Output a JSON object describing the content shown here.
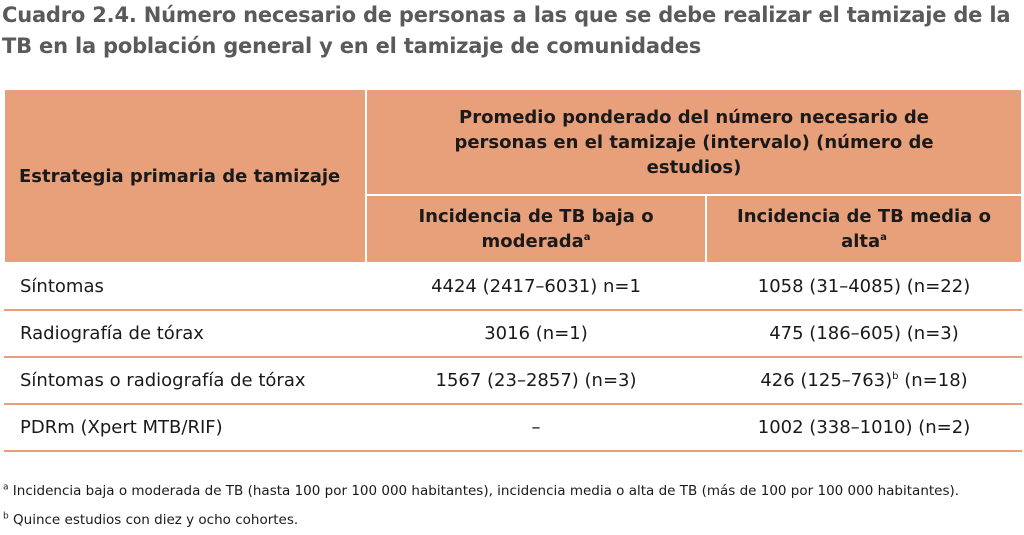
{
  "title": "Cuadro 2.4. Número necesario de personas a las que se debe realizar el tamizaje de la TB en la población general y en el tamizaje de comunidades",
  "table": {
    "col_strategy": "Estrategia primaria de tamizaje",
    "col_group": "Promedio ponderado del número necesario de personas en el tamizaje (intervalo) (número de estudios)",
    "col_low": "Incidencia de TB baja o moderada",
    "col_low_sup": "a",
    "col_high": "Incidencia de TB media o alta",
    "col_high_sup": "a",
    "rows": [
      {
        "strategy": "Síntomas",
        "low": "4424 (2417–6031) n=1",
        "high": "1058 (31–4085) (n=22)"
      },
      {
        "strategy": "Radiografía de tórax",
        "low": "3016 (n=1)",
        "high": "475 (186–605) (n=3)"
      },
      {
        "strategy": "Síntomas o radiografía de tórax",
        "low": "1567 (23–2857) (n=3)",
        "high_pre": "426 (125–763)",
        "high_sup": "b",
        "high_post": " (n=18)"
      },
      {
        "strategy": "PDRm (Xpert MTB/RIF)",
        "low": "–",
        "high": "1002 (338–1010) (n=2)"
      }
    ]
  },
  "footnotes": {
    "a_mark": "a",
    "a_text": " Incidencia baja o moderada de TB (hasta 100 por 100 000 habitantes), incidencia media o alta de TB (más de 100 por 100 000 habitantes).",
    "b_mark": "b",
    "b_text": " Quince estudios con diez y ocho cohortes."
  },
  "colors": {
    "header_fill": "#e8a07b",
    "title_color": "#5a5a5a"
  }
}
